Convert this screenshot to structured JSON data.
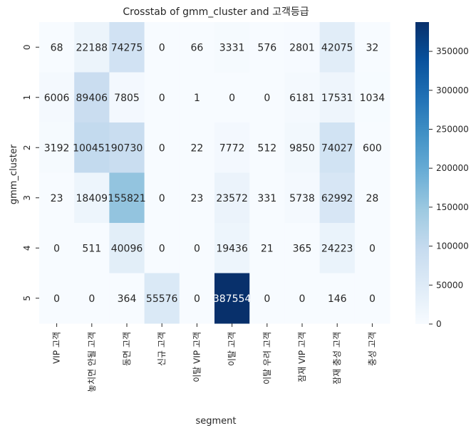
{
  "chart_data": {
    "type": "heatmap",
    "title": "Crosstab of gmm_cluster and 고객등급",
    "xlabel": "segment",
    "ylabel": "gmm_cluster",
    "x_categories": [
      "VIP 고객",
      "놓치면 안될 고객",
      "동면 고객",
      "신규 고객",
      "이탈 VIP 고객",
      "이탈 고객",
      "이탈 우려 고객",
      "잠재 VIP 고객",
      "잠재 충성 고객",
      "충성 고객"
    ],
    "y_categories": [
      "0",
      "1",
      "2",
      "3",
      "4",
      "5"
    ],
    "values": [
      [
        68,
        22188,
        74275,
        0,
        66,
        3331,
        576,
        2801,
        42075,
        32
      ],
      [
        6006,
        89406,
        7805,
        0,
        1,
        0,
        0,
        6181,
        17531,
        1034
      ],
      [
        3192,
        100451,
        90730,
        0,
        22,
        7772,
        512,
        9850,
        74027,
        600
      ],
      [
        23,
        18409,
        155821,
        0,
        23,
        23572,
        331,
        5738,
        62992,
        28
      ],
      [
        0,
        511,
        40096,
        0,
        0,
        19436,
        21,
        365,
        24223,
        0
      ],
      [
        0,
        0,
        364,
        55576,
        0,
        387554,
        0,
        0,
        146,
        0
      ]
    ],
    "cell_labels": [
      [
        "68",
        "22188",
        "74275",
        "0",
        "66",
        "3331",
        "576",
        "2801",
        "42075",
        "32"
      ],
      [
        "6006",
        "89406",
        "7805",
        "0",
        "1",
        "0",
        "0",
        "6181",
        "17531",
        "1034"
      ],
      [
        "3192",
        "100451",
        "90730",
        "0",
        "22",
        "7772",
        "512",
        "9850",
        "74027",
        "600"
      ],
      [
        "23",
        "18409",
        "155821",
        "0",
        "23",
        "23572",
        "331",
        "5738",
        "62992",
        "28"
      ],
      [
        "0",
        "511",
        "40096",
        "0",
        "0",
        "19436",
        "21",
        "365",
        "24223",
        "0"
      ],
      [
        "0",
        "0",
        "364",
        "55576",
        "0",
        "387554",
        "0",
        "0",
        "146",
        "0"
      ]
    ],
    "colormap": "Blues",
    "vmin": 0,
    "vmax": 387554,
    "colorbar_ticks": [
      0,
      50000,
      100000,
      150000,
      200000,
      250000,
      300000,
      350000
    ],
    "colors": {
      "low": "#f7fbff",
      "high": "#08306b"
    }
  }
}
